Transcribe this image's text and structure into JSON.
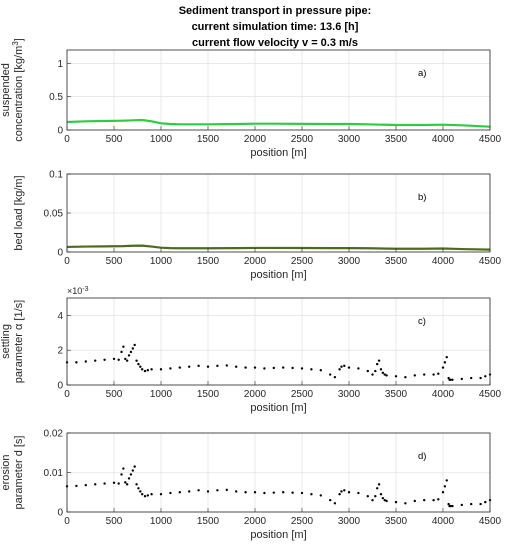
{
  "title_lines": [
    "Sediment transport in pressure pipe:",
    "current simulation time: 13.6 [h]",
    "current flow velocity v = 0.3 m/s"
  ],
  "chart_data": [
    {
      "type": "line",
      "panel_label": "a)",
      "xlabel": "position [m]",
      "ylabel_lines": [
        "suspended",
        "concentration [kg/m",
        "3",
        "]"
      ],
      "xlim": [
        0,
        4500
      ],
      "ylim": [
        0,
        1.2
      ],
      "xticks": [
        0,
        500,
        1000,
        1500,
        2000,
        2500,
        3000,
        3500,
        4000,
        4500
      ],
      "yticks": [
        0,
        0.5,
        1
      ],
      "ytick_labels": [
        "0",
        "0.5",
        "1"
      ],
      "grid": true,
      "color": "#2ecc40",
      "series": [
        {
          "x": [
            0,
            200,
            400,
            600,
            700,
            800,
            900,
            1000,
            1100,
            1200,
            1500,
            1800,
            2000,
            2200,
            2500,
            2800,
            3000,
            3200,
            3500,
            3800,
            4000,
            4200,
            4500
          ],
          "y": [
            0.12,
            0.13,
            0.135,
            0.14,
            0.145,
            0.15,
            0.13,
            0.1,
            0.09,
            0.085,
            0.085,
            0.09,
            0.095,
            0.095,
            0.092,
            0.09,
            0.09,
            0.085,
            0.075,
            0.075,
            0.08,
            0.07,
            0.05
          ]
        }
      ]
    },
    {
      "type": "line",
      "panel_label": "b)",
      "xlabel": "position [m]",
      "ylabel_lines": [
        "bed load [kg/m]"
      ],
      "xlim": [
        0,
        4500
      ],
      "ylim": [
        0,
        0.1
      ],
      "xticks": [
        0,
        500,
        1000,
        1500,
        2000,
        2500,
        3000,
        3500,
        4000,
        4500
      ],
      "yticks": [
        0,
        0.05,
        0.1
      ],
      "ytick_labels": [
        "0",
        "0.05",
        "0.1"
      ],
      "grid": true,
      "color": "#4d6b1e",
      "series": [
        {
          "x": [
            0,
            200,
            400,
            600,
            700,
            800,
            900,
            1000,
            1100,
            1200,
            1500,
            1800,
            2000,
            2200,
            2500,
            2800,
            3000,
            3200,
            3500,
            3800,
            4000,
            4200,
            4500
          ],
          "y": [
            0.0065,
            0.007,
            0.0072,
            0.0075,
            0.008,
            0.0082,
            0.007,
            0.0055,
            0.005,
            0.0048,
            0.0048,
            0.005,
            0.0052,
            0.0052,
            0.0051,
            0.005,
            0.005,
            0.0048,
            0.0042,
            0.0042,
            0.0045,
            0.0038,
            0.003
          ]
        }
      ]
    },
    {
      "type": "scatter",
      "panel_label": "c)",
      "xlabel": "position [m]",
      "ylabel_lines": [
        "settling",
        "parameter α [1/s]"
      ],
      "exponent_label": "×10",
      "exponent_power": "-3",
      "xlim": [
        0,
        4500
      ],
      "ylim": [
        0,
        0.005
      ],
      "xticks": [
        0,
        500,
        1000,
        1500,
        2000,
        2500,
        3000,
        3500,
        4000,
        4500
      ],
      "yticks": [
        0,
        0.002,
        0.004
      ],
      "ytick_labels": [
        "0",
        "2",
        "4"
      ],
      "grid": true,
      "color": "#000000",
      "series": [
        {
          "x": [
            0,
            100,
            200,
            300,
            400,
            500,
            550,
            580,
            600,
            620,
            640,
            660,
            680,
            700,
            720,
            740,
            760,
            780,
            800,
            830,
            860,
            900,
            1000,
            1100,
            1200,
            1300,
            1400,
            1500,
            1600,
            1700,
            1800,
            1900,
            2000,
            2100,
            2200,
            2300,
            2400,
            2500,
            2600,
            2700,
            2800,
            2850,
            2900,
            2920,
            2950,
            3000,
            3100,
            3200,
            3250,
            3280,
            3300,
            3320,
            3340,
            3360,
            3380,
            3400,
            3500,
            3600,
            3700,
            3800,
            3900,
            3950,
            4000,
            4020,
            4040,
            4060,
            4070,
            4080,
            4100,
            4200,
            4300,
            4400,
            4450,
            4500
          ],
          "y": [
            0.0013,
            0.0013,
            0.00135,
            0.0014,
            0.00145,
            0.0015,
            0.00145,
            0.0019,
            0.0022,
            0.0015,
            0.0014,
            0.0017,
            0.0019,
            0.0021,
            0.0023,
            0.0014,
            0.0012,
            0.00105,
            0.0009,
            0.0008,
            0.00085,
            0.0009,
            0.0009,
            0.00095,
            0.001,
            0.00105,
            0.0011,
            0.00105,
            0.0011,
            0.00112,
            0.00105,
            0.001,
            0.001,
            0.00095,
            0.00098,
            0.001,
            0.00098,
            0.00095,
            0.0009,
            0.00085,
            0.0006,
            0.00045,
            0.0009,
            0.00105,
            0.0011,
            0.001,
            0.00095,
            0.0008,
            0.0006,
            0.0008,
            0.0012,
            0.0014,
            0.0009,
            0.0007,
            0.0006,
            0.00055,
            0.0005,
            0.00045,
            0.00055,
            0.0006,
            0.0006,
            0.00065,
            0.001,
            0.0013,
            0.0016,
            0.0004,
            0.0003,
            0.0003,
            0.0003,
            0.00035,
            0.0004,
            0.0004,
            0.0005,
            0.0006
          ]
        }
      ]
    },
    {
      "type": "scatter",
      "panel_label": "d)",
      "xlabel": "position [m]",
      "ylabel_lines": [
        "erosion",
        "parameter d [s]"
      ],
      "xlim": [
        0,
        4500
      ],
      "ylim": [
        0,
        0.02
      ],
      "xticks": [
        0,
        500,
        1000,
        1500,
        2000,
        2500,
        3000,
        3500,
        4000,
        4500
      ],
      "yticks": [
        0,
        0.01,
        0.02
      ],
      "ytick_labels": [
        "0",
        "0.01",
        "0.02"
      ],
      "grid": true,
      "color": "#000000",
      "series": [
        {
          "x": [
            0,
            100,
            200,
            300,
            400,
            500,
            550,
            580,
            600,
            620,
            640,
            660,
            680,
            700,
            720,
            740,
            760,
            780,
            800,
            830,
            860,
            900,
            1000,
            1100,
            1200,
            1300,
            1400,
            1500,
            1600,
            1700,
            1800,
            1900,
            2000,
            2100,
            2200,
            2300,
            2400,
            2500,
            2600,
            2700,
            2800,
            2850,
            2900,
            2920,
            2950,
            3000,
            3100,
            3200,
            3250,
            3280,
            3300,
            3320,
            3340,
            3360,
            3380,
            3400,
            3500,
            3600,
            3700,
            3800,
            3900,
            3950,
            4000,
            4020,
            4040,
            4060,
            4070,
            4080,
            4100,
            4200,
            4300,
            4400,
            4450,
            4500
          ],
          "y": [
            0.0065,
            0.0066,
            0.0068,
            0.007,
            0.0072,
            0.0074,
            0.0072,
            0.0095,
            0.011,
            0.0075,
            0.007,
            0.0085,
            0.0095,
            0.0105,
            0.0115,
            0.007,
            0.006,
            0.0052,
            0.0045,
            0.004,
            0.0042,
            0.0045,
            0.0045,
            0.0048,
            0.005,
            0.0052,
            0.0055,
            0.0052,
            0.0055,
            0.0056,
            0.0052,
            0.005,
            0.005,
            0.0048,
            0.0049,
            0.005,
            0.0049,
            0.0048,
            0.0045,
            0.0042,
            0.003,
            0.0022,
            0.0045,
            0.0052,
            0.0055,
            0.005,
            0.0048,
            0.004,
            0.003,
            0.004,
            0.006,
            0.007,
            0.0045,
            0.0035,
            0.003,
            0.0028,
            0.0025,
            0.0022,
            0.0028,
            0.003,
            0.003,
            0.0032,
            0.005,
            0.0065,
            0.008,
            0.002,
            0.0015,
            0.0015,
            0.0015,
            0.0018,
            0.002,
            0.002,
            0.0025,
            0.003
          ]
        }
      ]
    }
  ]
}
